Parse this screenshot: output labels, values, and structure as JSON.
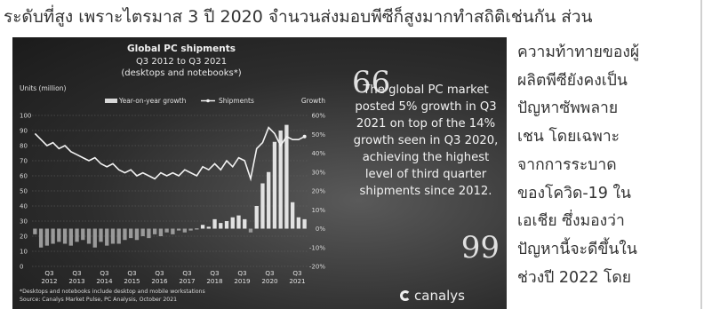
{
  "article": {
    "top_line": "ระดับที่สูง เพราะไตรมาส 3 ปี 2020 จำนวนส่งมอบพีซีก็สูงมากทำสถิติเช่นกัน ส่วน",
    "side_lines": [
      "ความท้าทายของผู้",
      "ผลิตพีซียังคงเป็น",
      "ปัญหาซัพพลาย",
      "เชน โดยเฉพาะ",
      "จากการระบาด",
      "ของโควิด-19 ใน",
      "เอเชีย ซึ่งมองว่า",
      "ปัญหานี้จะดีขึ้นใน",
      "ช่วงปี 2022 โดย"
    ]
  },
  "figure": {
    "quote_open": "66",
    "quote_close": "99",
    "quote": "The global PC market posted 5% growth in Q3 2021 on top of the 14% growth seen in Q3 2020, achieving the highest level of third quarter shipments since 2012.",
    "brand": "canalys"
  },
  "chart_data": {
    "type": "bar",
    "title": "Global PC shipments",
    "subtitle": "Q3 2012 to Q3 2021",
    "subtitle2": "(desktops and notebooks*)",
    "left_axis_label": "Units (million)",
    "right_axis_label": "Growth",
    "legend": [
      "Year-on-year growth",
      "Shipments"
    ],
    "ylim_left": [
      0,
      100
    ],
    "ylim_right": [
      -20,
      60
    ],
    "left_ticks": [
      "100",
      "90",
      "80",
      "70",
      "60",
      "50",
      "40",
      "30",
      "20",
      "10",
      "0"
    ],
    "right_ticks": [
      "60%",
      "50%",
      "40%",
      "30%",
      "20%",
      "10%",
      "0%",
      "-10%",
      "-20%"
    ],
    "x_labels": [
      [
        "Q3",
        "2012"
      ],
      [
        "Q3",
        "2013"
      ],
      [
        "Q3",
        "2014"
      ],
      [
        "Q3",
        "2015"
      ],
      [
        "Q3",
        "2016"
      ],
      [
        "Q3",
        "2017"
      ],
      [
        "Q3",
        "2018"
      ],
      [
        "Q3",
        "2019"
      ],
      [
        "Q3",
        "2020"
      ],
      [
        "Q3",
        "2021"
      ]
    ],
    "shipments": [
      88,
      84,
      80,
      82,
      78,
      80,
      76,
      74,
      72,
      70,
      72,
      68,
      66,
      68,
      64,
      62,
      64,
      60,
      62,
      60,
      58,
      62,
      60,
      62,
      60,
      64,
      62,
      60,
      66,
      64,
      68,
      64,
      70,
      66,
      72,
      70,
      58,
      78,
      82,
      92,
      88,
      80,
      86,
      84,
      84,
      86
    ],
    "growth": [
      -3,
      -10,
      -9,
      -8,
      -7,
      -8,
      -9,
      -7,
      -6,
      -8,
      -10,
      -7,
      -9,
      -8,
      -8,
      -6,
      -5,
      -6,
      -4,
      -5,
      -3,
      -4,
      -2,
      -3,
      -1,
      -2,
      -1,
      0,
      2,
      1,
      5,
      3,
      4,
      6,
      7,
      5,
      -2,
      12,
      24,
      30,
      46,
      52,
      55,
      14,
      6,
      5
    ],
    "footnote": "*Desktops and notebooks include desktop and mobile workstations",
    "source": "Source: Canalys Market Pulse, PC Analysis, October 2021",
    "colors": {
      "background": "#2b2b2b",
      "text": "#e8e8e8",
      "bars": "#d8d8d8",
      "line": "#f0f0f0"
    }
  }
}
